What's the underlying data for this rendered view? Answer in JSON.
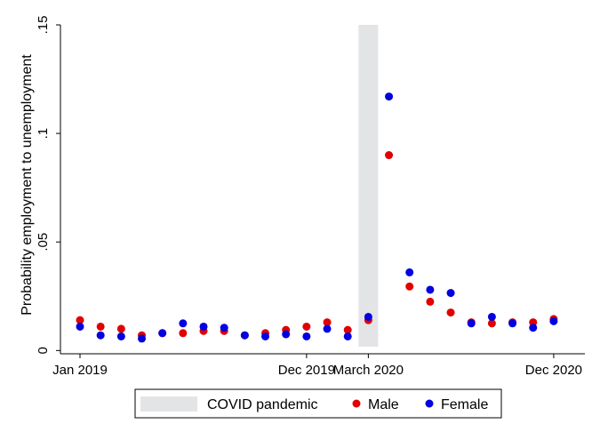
{
  "chart_data": {
    "type": "scatter",
    "title": "",
    "xlabel": "",
    "ylabel": "Probability employment to unemployment",
    "x_months": [
      "2019-01",
      "2019-02",
      "2019-03",
      "2019-04",
      "2019-05",
      "2019-06",
      "2019-07",
      "2019-08",
      "2019-09",
      "2019-10",
      "2019-11",
      "2019-12",
      "2020-01",
      "2020-02",
      "2020-03",
      "2020-04",
      "2020-05",
      "2020-06",
      "2020-07",
      "2020-08",
      "2020-09",
      "2020-10",
      "2020-11",
      "2020-12"
    ],
    "x_ticks": [
      {
        "month": "2019-01",
        "label": "Jan 2019"
      },
      {
        "month": "2019-12",
        "label": "Dec 2019"
      },
      {
        "month": "2020-03",
        "label": "March 2020"
      },
      {
        "month": "2020-12",
        "label": "Dec 2020"
      }
    ],
    "y_ticks": [
      {
        "value": 0,
        "label": "0"
      },
      {
        "value": 0.05,
        "label": ".05"
      },
      {
        "value": 0.1,
        "label": ".1"
      },
      {
        "value": 0.15,
        "label": ".15"
      }
    ],
    "ylim": [
      -0.0015,
      0.15
    ],
    "shaded_band": {
      "month": "2020-03",
      "label": "COVID pandemic",
      "color": "#e3e4e6"
    },
    "series": [
      {
        "name": "Male",
        "color": "#e00000",
        "values": [
          0.014,
          0.011,
          0.01,
          0.007,
          0.008,
          0.008,
          0.009,
          0.009,
          0.007,
          0.008,
          0.0095,
          0.011,
          0.013,
          0.0095,
          0.014,
          0.09,
          0.0295,
          0.0225,
          0.0175,
          0.013,
          0.0125,
          0.013,
          0.013,
          0.0145
        ]
      },
      {
        "name": "Female",
        "color": "#0000e0",
        "values": [
          0.011,
          0.007,
          0.0065,
          0.0055,
          0.008,
          0.0125,
          0.011,
          0.0105,
          0.007,
          0.0065,
          0.0075,
          0.0065,
          0.01,
          0.0065,
          0.0155,
          0.117,
          0.036,
          0.028,
          0.0265,
          0.0125,
          0.0155,
          0.0125,
          0.0105,
          0.0135
        ]
      }
    ],
    "legend": {
      "position": "bottom"
    },
    "grid": false
  }
}
